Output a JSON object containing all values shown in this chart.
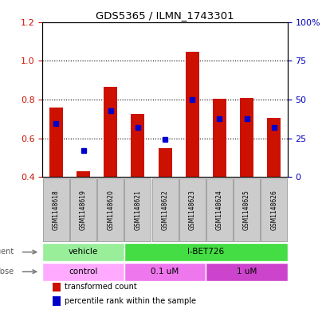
{
  "title": "GDS5365 / ILMN_1743301",
  "samples": [
    "GSM1148618",
    "GSM1148619",
    "GSM1148620",
    "GSM1148621",
    "GSM1148622",
    "GSM1148623",
    "GSM1148624",
    "GSM1148625",
    "GSM1148626"
  ],
  "transformed_count": [
    0.76,
    0.43,
    0.865,
    0.725,
    0.55,
    1.045,
    0.805,
    0.808,
    0.705
  ],
  "percentile_rank": [
    0.675,
    0.535,
    0.74,
    0.655,
    0.595,
    0.798,
    0.7,
    0.7,
    0.655
  ],
  "ylim_left": [
    0.4,
    1.2
  ],
  "yticks_left": [
    0.4,
    0.6,
    0.8,
    1.0,
    1.2
  ],
  "yticks_right": [
    0,
    25,
    50,
    75,
    100
  ],
  "ytick_labels_right": [
    "0",
    "25",
    "50",
    "75",
    "100%"
  ],
  "bar_color": "#cc1100",
  "dot_color": "#0000cc",
  "bar_bottom": 0.4,
  "agent_labels": [
    {
      "text": "vehicle",
      "start": 0,
      "end": 3,
      "color": "#99ee99"
    },
    {
      "text": "I-BET726",
      "start": 3,
      "end": 9,
      "color": "#44dd44"
    }
  ],
  "dose_labels": [
    {
      "text": "control",
      "start": 0,
      "end": 3,
      "color": "#ffaaff"
    },
    {
      "text": "0.1 uM",
      "start": 3,
      "end": 6,
      "color": "#ee77ee"
    },
    {
      "text": "1 uM",
      "start": 6,
      "end": 9,
      "color": "#cc44cc"
    }
  ],
  "legend_items": [
    {
      "label": "transformed count",
      "color": "#cc1100"
    },
    {
      "label": "percentile rank within the sample",
      "color": "#0000cc"
    }
  ],
  "grid_color": "#000000",
  "background_color": "#ffffff",
  "ylabel_left_color": "#cc1100",
  "ylabel_right_color": "#0000bb",
  "sample_box_color": "#cccccc",
  "sample_box_edge": "#888888",
  "label_color_agent_dose": "#555555"
}
